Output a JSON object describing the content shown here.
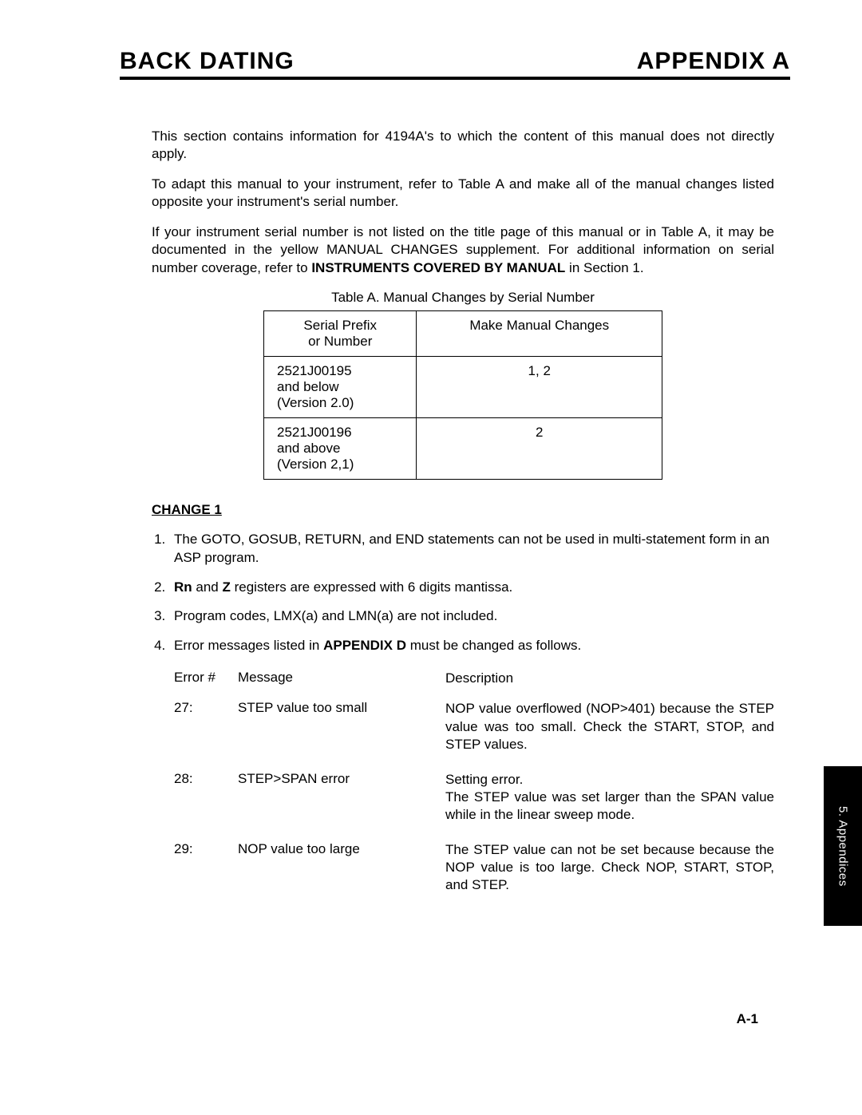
{
  "header": {
    "left": "BACK DATING",
    "right": "APPENDIX A"
  },
  "paragraphs": {
    "p1": "This section contains information for 4194A's to which the content of this manual does not directly apply.",
    "p2": "To adapt this manual to your instrument, refer to Table A and make all of the manual changes listed opposite your instrument's serial number.",
    "p3_a": "If your instrument serial number is not listed on the title page of this manual or in Table A, it may be documented in the yellow MANUAL CHANGES supplement. For additional information on serial number coverage, refer to ",
    "p3_b": "INSTRUMENTS COVERED BY MANUAL",
    "p3_c": " in Section 1."
  },
  "tableA": {
    "caption": "Table A. Manual Changes by Serial Number",
    "columns": [
      "Serial Prefix\nor Number",
      "Make Manual Changes"
    ],
    "col_header_1a": "Serial Prefix",
    "col_header_1b": "or Number",
    "col_header_2": "Make Manual Changes",
    "rows": [
      {
        "left_l1": "2521J00195",
        "left_l2": "and below",
        "left_l3": "(Version 2.0)",
        "right": "1, 2"
      },
      {
        "left_l1": "2521J00196",
        "left_l2": "and above",
        "left_l3": "(Version 2,1)",
        "right": "2"
      }
    ]
  },
  "change1": {
    "heading": "CHANGE 1",
    "items": {
      "i1": "The GOTO, GOSUB, RETURN, and END statements can not be used in multi-statement form in an ASP program.",
      "i2_a": "Rn",
      "i2_b": " and ",
      "i2_c": "Z",
      "i2_d": " registers are expressed with 6 digits mantissa.",
      "i3": "Program codes, LMX(a) and LMN(a) are not included.",
      "i4_a": "Error messages listed in ",
      "i4_b": "APPENDIX D",
      "i4_c": " must be changed as follows."
    }
  },
  "errors": {
    "header": {
      "num": "Error #",
      "msg": "Message",
      "desc": "Description"
    },
    "rows": [
      {
        "num": "27:",
        "msg": "STEP value too small",
        "desc": "NOP value overflowed (NOP>401) because the STEP value was too small. Check the START, STOP, and STEP values."
      },
      {
        "num": "28:",
        "msg": "STEP>SPAN error",
        "desc": "Setting error.\nThe STEP value was set larger than the SPAN value while in the linear sweep mode."
      },
      {
        "num": "29:",
        "msg": "NOP value too large",
        "desc": "The STEP value can not be set because because the NOP value is too large. Check NOP, START, STOP, and STEP."
      }
    ]
  },
  "sideTab": "5. Appendices",
  "pageNumber": "A-1",
  "colors": {
    "text": "#000000",
    "bg": "#ffffff",
    "tab_bg": "#000000",
    "tab_text": "#ffffff",
    "rule": "#000000"
  }
}
